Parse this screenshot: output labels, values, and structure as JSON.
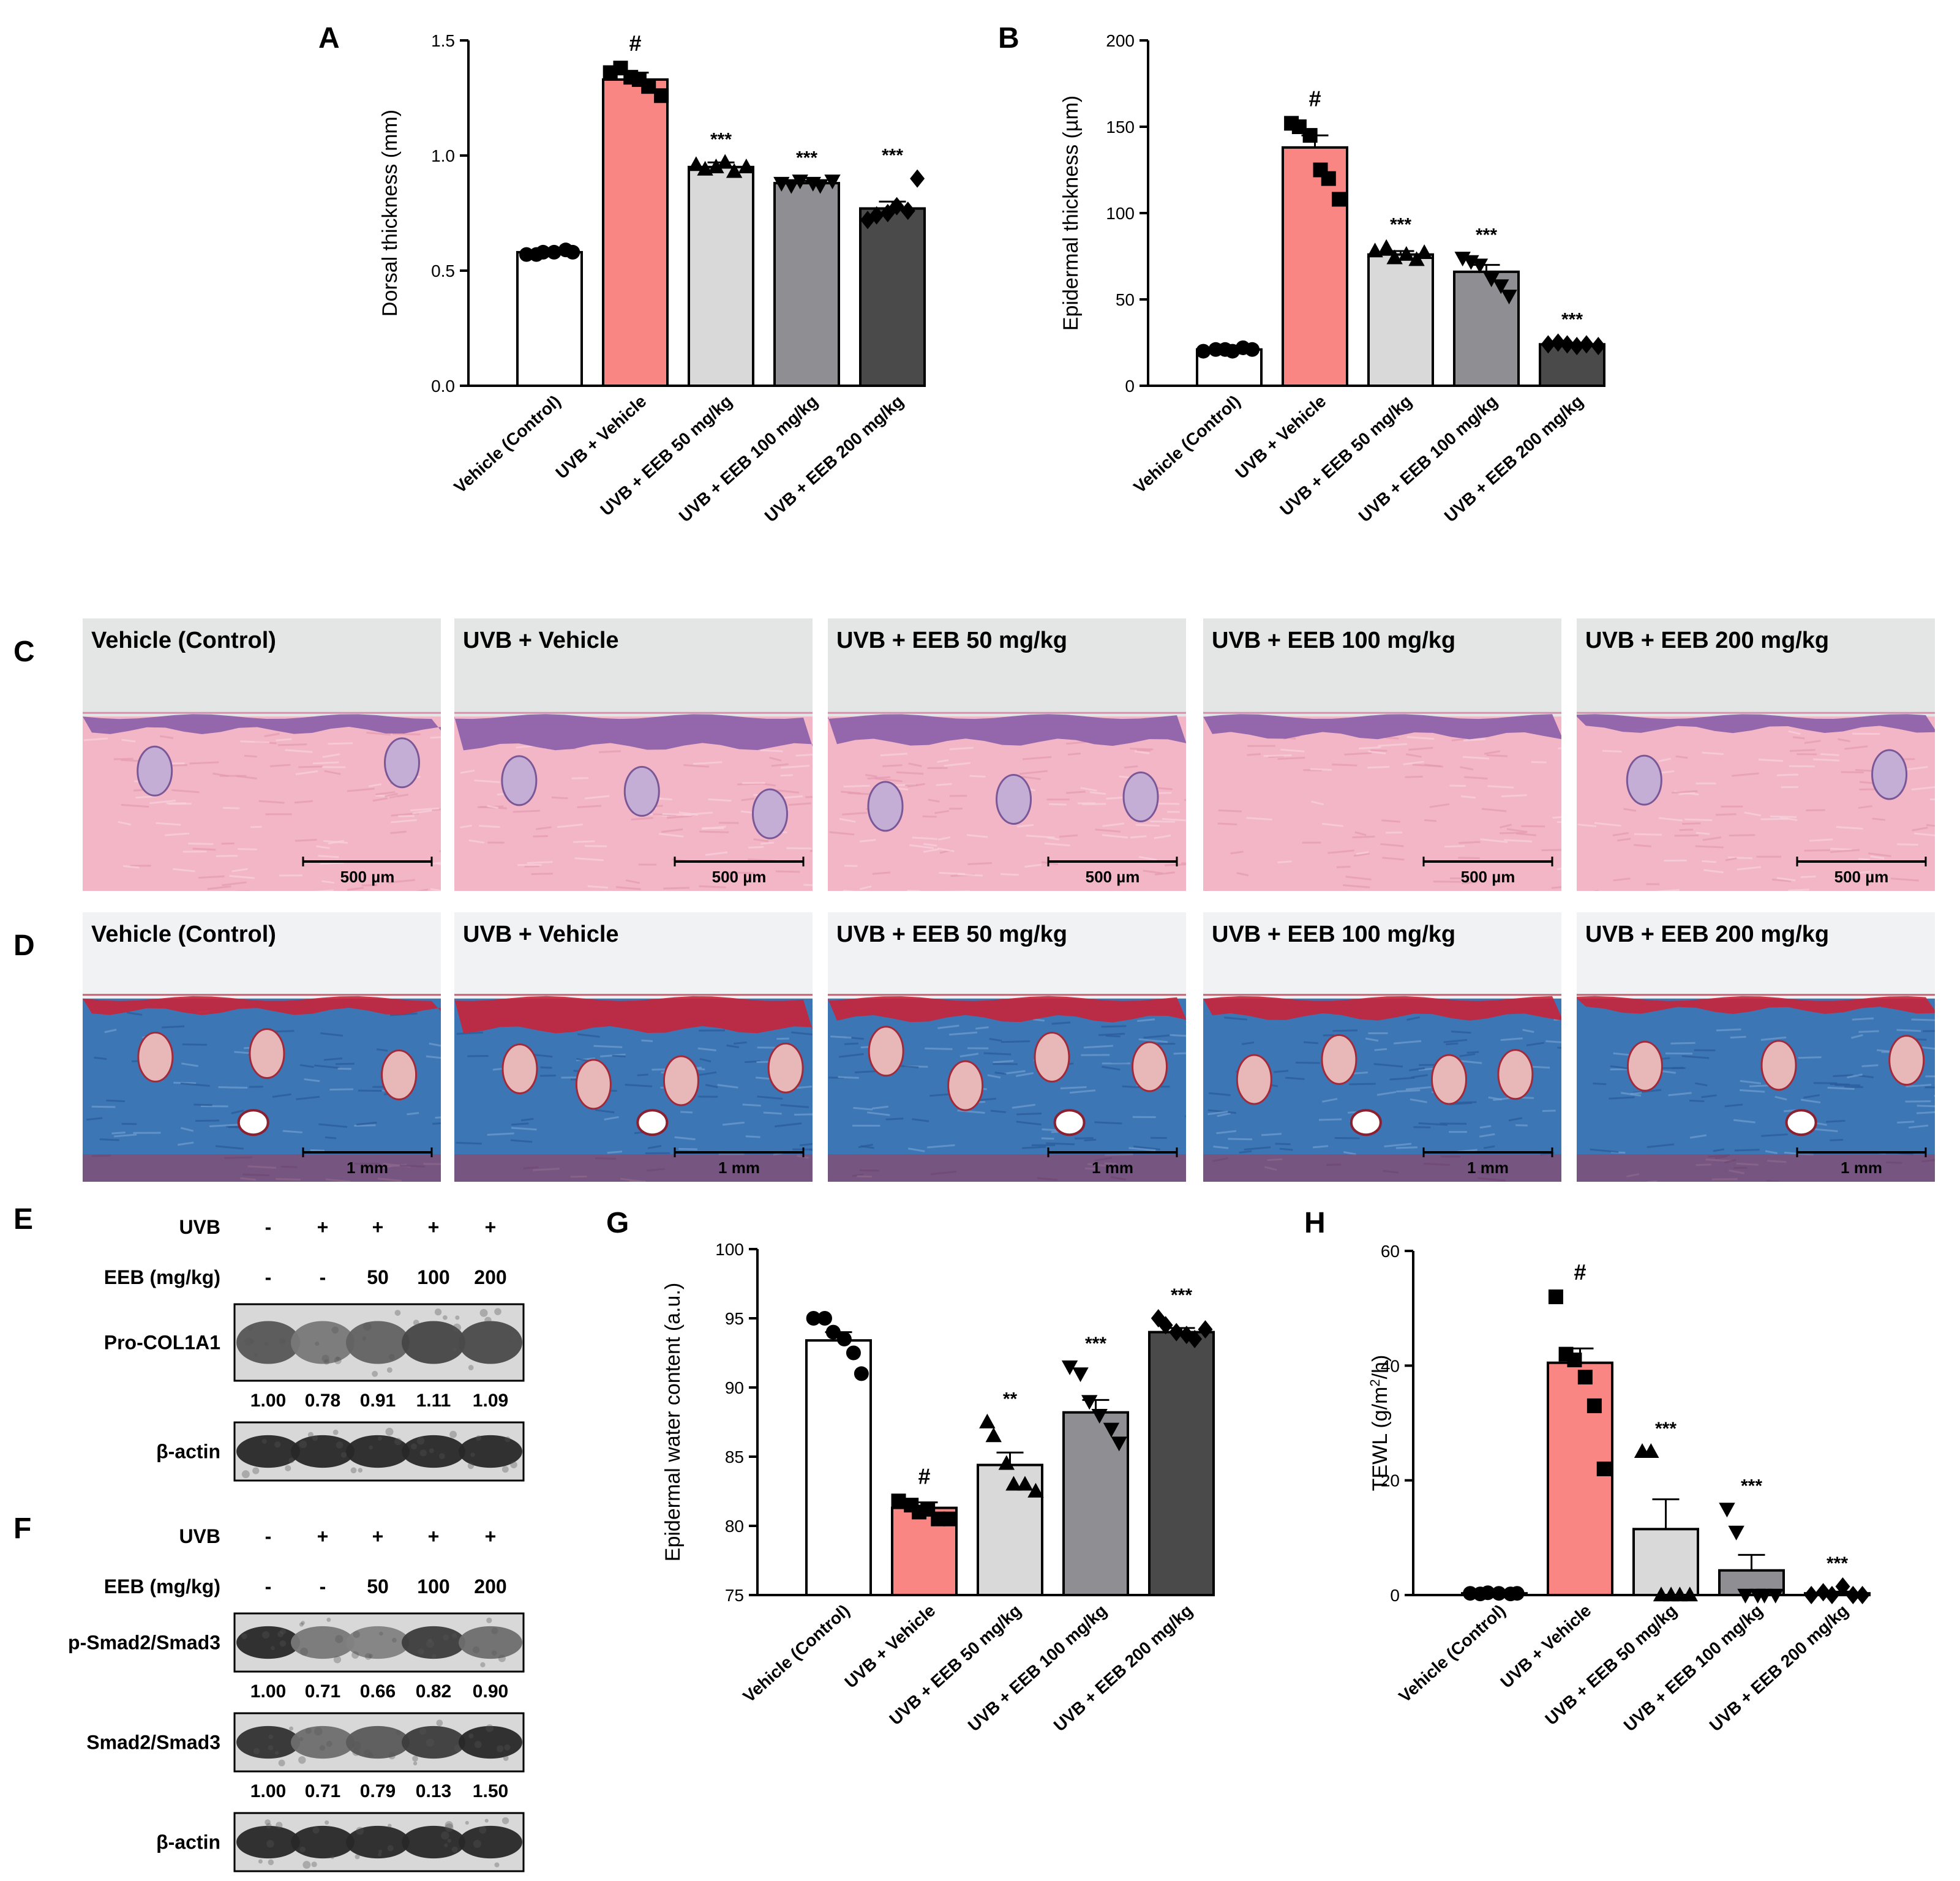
{
  "panels": {
    "A": "A",
    "B": "B",
    "C": "C",
    "D": "D",
    "E": "E",
    "F": "F",
    "G": "G",
    "H": "H"
  },
  "groups": [
    "Vehicle (Control)",
    "UVB + Vehicle",
    "UVB + EEB 50 mg/kg",
    "UVB + EEB 100 mg/kg",
    "UVB + EEB 200 mg/kg"
  ],
  "colors": {
    "fills": [
      "#ffffff",
      "#f98683",
      "#d9d9d9",
      "#8f8f93",
      "#4a4a4a"
    ],
    "he_pink": "#f2b6c6",
    "he_purple": "#8a5ea8",
    "mt_blue": "#3d76b5",
    "mt_red": "#c8243a"
  },
  "chart_data": [
    {
      "id": "A",
      "type": "bar",
      "categories": [
        "Vehicle (Control)",
        "UVB + Vehicle",
        "UVB + EEB 50 mg/kg",
        "UVB + EEB 100 mg/kg",
        "UVB + EEB 200 mg/kg"
      ],
      "values": [
        0.58,
        1.33,
        0.95,
        0.88,
        0.77
      ],
      "errors": [
        0.01,
        0.03,
        0.02,
        0.01,
        0.03
      ],
      "points": [
        [
          0.57,
          0.57,
          0.58,
          0.58,
          0.59,
          0.58
        ],
        [
          1.36,
          1.38,
          1.34,
          1.33,
          1.3,
          1.26
        ],
        [
          0.96,
          0.94,
          0.95,
          0.97,
          0.93,
          0.95
        ],
        [
          0.88,
          0.87,
          0.89,
          0.88,
          0.87,
          0.89
        ],
        [
          0.72,
          0.74,
          0.75,
          0.78,
          0.76,
          0.9
        ]
      ],
      "markers": [
        "circle",
        "square",
        "triangle",
        "triangle-down",
        "diamond"
      ],
      "annotations": [
        "",
        "#",
        "***",
        "***",
        "***"
      ],
      "ylabel": "Dorsal thickness (mm)",
      "ylim": [
        0,
        1.5
      ],
      "yticks": [
        "0.0",
        "0.5",
        "1.0",
        "1.5"
      ]
    },
    {
      "id": "B",
      "type": "bar",
      "categories": [
        "Vehicle (Control)",
        "UVB + Vehicle",
        "UVB + EEB 50 mg/kg",
        "UVB + EEB 100 mg/kg",
        "UVB + EEB 200 mg/kg"
      ],
      "values": [
        21,
        138,
        76,
        66,
        24
      ],
      "errors": [
        1,
        7,
        2,
        4,
        1
      ],
      "points": [
        [
          20,
          21,
          21,
          20,
          22,
          21
        ],
        [
          152,
          150,
          145,
          125,
          120,
          108
        ],
        [
          78,
          80,
          74,
          76,
          73,
          77
        ],
        [
          74,
          72,
          70,
          62,
          58,
          52
        ],
        [
          24,
          25,
          24,
          23,
          24,
          23
        ]
      ],
      "markers": [
        "circle",
        "square",
        "triangle",
        "triangle-down",
        "diamond"
      ],
      "annotations": [
        "",
        "#",
        "***",
        "***",
        "***"
      ],
      "ylabel": "Epidermal thickness (µm)",
      "ylim": [
        0,
        200
      ],
      "yticks": [
        "0",
        "50",
        "100",
        "150",
        "200"
      ]
    },
    {
      "id": "G",
      "type": "bar",
      "categories": [
        "Vehicle (Control)",
        "UVB + Vehicle",
        "UVB + EEB 50 mg/kg",
        "UVB + EEB 100 mg/kg",
        "UVB + EEB 200 mg/kg"
      ],
      "values": [
        93.4,
        81.3,
        84.4,
        88.2,
        94.0
      ],
      "errors": [
        0.6,
        0.4,
        0.9,
        0.9,
        0.3
      ],
      "points": [
        [
          95.0,
          95.0,
          94.0,
          93.5,
          92.5,
          91.0
        ],
        [
          81.8,
          81.5,
          81.0,
          81.2,
          80.5,
          80.5
        ],
        [
          87.5,
          86.5,
          84.5,
          83.0,
          83.0,
          82.5
        ],
        [
          91.5,
          91.0,
          89.0,
          88.0,
          87.0,
          86.0
        ],
        [
          95.0,
          94.5,
          94.0,
          93.8,
          93.5,
          94.2
        ]
      ],
      "markers": [
        "circle",
        "square",
        "triangle",
        "triangle-down",
        "diamond"
      ],
      "annotations": [
        "",
        "#",
        "**",
        "***",
        "***"
      ],
      "ylabel": "Epidermal water content (a.u.)",
      "ylim": [
        75,
        100
      ],
      "yticks": [
        "75",
        "80",
        "85",
        "90",
        "95",
        "100"
      ]
    },
    {
      "id": "H",
      "type": "bar",
      "categories": [
        "Vehicle (Control)",
        "UVB + Vehicle",
        "UVB + EEB 50 mg/kg",
        "UVB + EEB 100 mg/kg",
        "UVB + EEB 200 mg/kg"
      ],
      "values": [
        0.3,
        40.5,
        11.5,
        4.3,
        0.3
      ],
      "errors": [
        0.2,
        2.5,
        5.2,
        2.7,
        0.3
      ],
      "points": [
        [
          0.3,
          0.2,
          0.4,
          0.3,
          0.2,
          0.3
        ],
        [
          52.0,
          42.0,
          41.0,
          38.0,
          33.0,
          22.0
        ],
        [
          25.0,
          25.0,
          0.0,
          0.0,
          0.0,
          0.0
        ],
        [
          15.0,
          11.0,
          0.0,
          0.0,
          0.0,
          0.0
        ],
        [
          0.0,
          0.5,
          0.0,
          1.5,
          0.0,
          0.0
        ]
      ],
      "markers": [
        "circle",
        "square",
        "triangle",
        "triangle-down",
        "diamond"
      ],
      "annotations": [
        "",
        "#",
        "***",
        "***",
        "***"
      ],
      "ylabel_main": "TEWL (g/m",
      "ylabel_sup": "2",
      "ylabel_end": "/h)",
      "ylim": [
        0,
        60
      ],
      "yticks": [
        "0",
        "20",
        "40",
        "60"
      ]
    }
  ],
  "histology": {
    "C": {
      "scale": "500 µm",
      "epi": [
        0.18,
        0.62,
        0.5,
        0.32,
        0.15
      ],
      "glands": [
        2,
        3,
        3,
        0,
        2
      ]
    },
    "D": {
      "scale": "1 mm",
      "epi": [
        0.15,
        0.65,
        0.35,
        0.3,
        0.12
      ],
      "glands": [
        3,
        4,
        4,
        4,
        3
      ]
    }
  },
  "blots": {
    "E": {
      "row_labels": {
        "uvb": "UVB",
        "eeb": "EEB (mg/kg)"
      },
      "uvb": [
        "-",
        "+",
        "+",
        "+",
        "+"
      ],
      "eeb": [
        "-",
        "-",
        "50",
        "100",
        "200"
      ],
      "bands": [
        {
          "label": "Pro-COL1A1",
          "intensity": [
            0.72,
            0.55,
            0.66,
            0.8,
            0.78
          ],
          "quant": [
            "1.00",
            "0.78",
            "0.91",
            "1.11",
            "1.09"
          ]
        },
        {
          "label": "β-actin",
          "intensity": [
            0.95,
            0.95,
            0.95,
            0.95,
            0.95
          ],
          "quant": null
        }
      ]
    },
    "F": {
      "row_labels": {
        "uvb": "UVB",
        "eeb": "EEB (mg/kg)"
      },
      "uvb": [
        "-",
        "+",
        "+",
        "+",
        "+"
      ],
      "eeb": [
        "-",
        "-",
        "50",
        "100",
        "200"
      ],
      "bands": [
        {
          "label": "p-Smad2/Smad3",
          "intensity": [
            0.95,
            0.55,
            0.5,
            0.85,
            0.6
          ],
          "quant": [
            "1.00",
            "0.71",
            "0.66",
            "0.82",
            "0.90"
          ]
        },
        {
          "label": "Smad2/Smad3",
          "intensity": [
            0.9,
            0.6,
            0.7,
            0.85,
            0.95
          ],
          "quant": [
            "1.00",
            "0.71",
            "0.79",
            "0.13",
            "1.50"
          ]
        },
        {
          "label": "β-actin",
          "intensity": [
            0.95,
            0.95,
            0.95,
            0.95,
            0.95
          ],
          "quant": null
        }
      ]
    }
  }
}
